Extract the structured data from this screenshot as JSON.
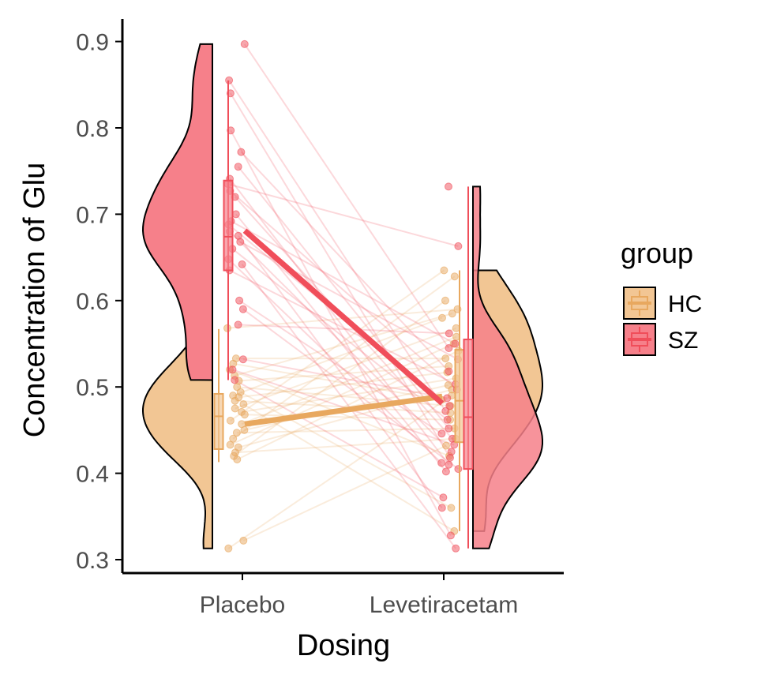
{
  "chart_data": {
    "type": "raincloud",
    "xlabel": "Dosing",
    "ylabel": "Concentration of Glu",
    "categories": [
      "Placebo",
      "Levetiracetam"
    ],
    "ylim": [
      0.3,
      0.92
    ],
    "yticks": [
      0.3,
      0.4,
      0.5,
      0.6,
      0.7,
      0.8,
      0.9
    ],
    "legend": {
      "title": "group",
      "position": "right"
    },
    "grid": false,
    "series": [
      {
        "name": "HC",
        "color": "#E8A85F",
        "fill": "#F2C694",
        "points": {
          "Placebo": [
            0.322,
            0.313,
            0.416,
            0.42,
            0.424,
            0.43,
            0.433,
            0.44,
            0.447,
            0.45,
            0.457,
            0.461,
            0.468,
            0.471,
            0.475,
            0.48,
            0.484,
            0.488,
            0.49,
            0.494,
            0.5,
            0.507,
            0.513,
            0.52,
            0.527,
            0.533,
            0.568
          ],
          "Levetiracetam": [
            0.333,
            0.36,
            0.42,
            0.432,
            0.44,
            0.452,
            0.462,
            0.47,
            0.478,
            0.485,
            0.49,
            0.497,
            0.502,
            0.51,
            0.517,
            0.524,
            0.533,
            0.542,
            0.55,
            0.558,
            0.568,
            0.58,
            0.585,
            0.59,
            0.6,
            0.628,
            0.635
          ]
        },
        "box": {
          "Placebo": {
            "min": 0.413,
            "q1": 0.428,
            "median": 0.466,
            "q3": 0.492,
            "max": 0.567
          },
          "Levetiracetam": {
            "min": 0.333,
            "q1": 0.436,
            "median": 0.484,
            "q3": 0.543,
            "max": 0.635
          }
        },
        "mean": {
          "Placebo": 0.457,
          "Levetiracetam": 0.489
        }
      },
      {
        "name": "SZ",
        "color": "#F04E5A",
        "fill": "#F6808A",
        "points": {
          "Placebo": [
            0.508,
            0.52,
            0.532,
            0.572,
            0.59,
            0.6,
            0.635,
            0.642,
            0.648,
            0.66,
            0.668,
            0.675,
            0.68,
            0.688,
            0.692,
            0.7,
            0.72,
            0.727,
            0.735,
            0.741,
            0.755,
            0.772,
            0.797,
            0.84,
            0.855,
            0.897
          ],
          "Levetiracetam": [
            0.313,
            0.328,
            0.36,
            0.372,
            0.402,
            0.405,
            0.41,
            0.412,
            0.418,
            0.425,
            0.433,
            0.44,
            0.446,
            0.452,
            0.462,
            0.472,
            0.478,
            0.487,
            0.497,
            0.503,
            0.518,
            0.532,
            0.545,
            0.55,
            0.562,
            0.663,
            0.732
          ]
        },
        "box": {
          "Placebo": {
            "min": 0.508,
            "q1": 0.635,
            "median": 0.674,
            "q3": 0.739,
            "max": 0.855
          },
          "Levetiracetam": {
            "min": 0.313,
            "q1": 0.405,
            "median": 0.465,
            "q3": 0.555,
            "max": 0.732
          }
        },
        "mean": {
          "Placebo": 0.681,
          "Levetiracetam": 0.481
        }
      }
    ]
  }
}
